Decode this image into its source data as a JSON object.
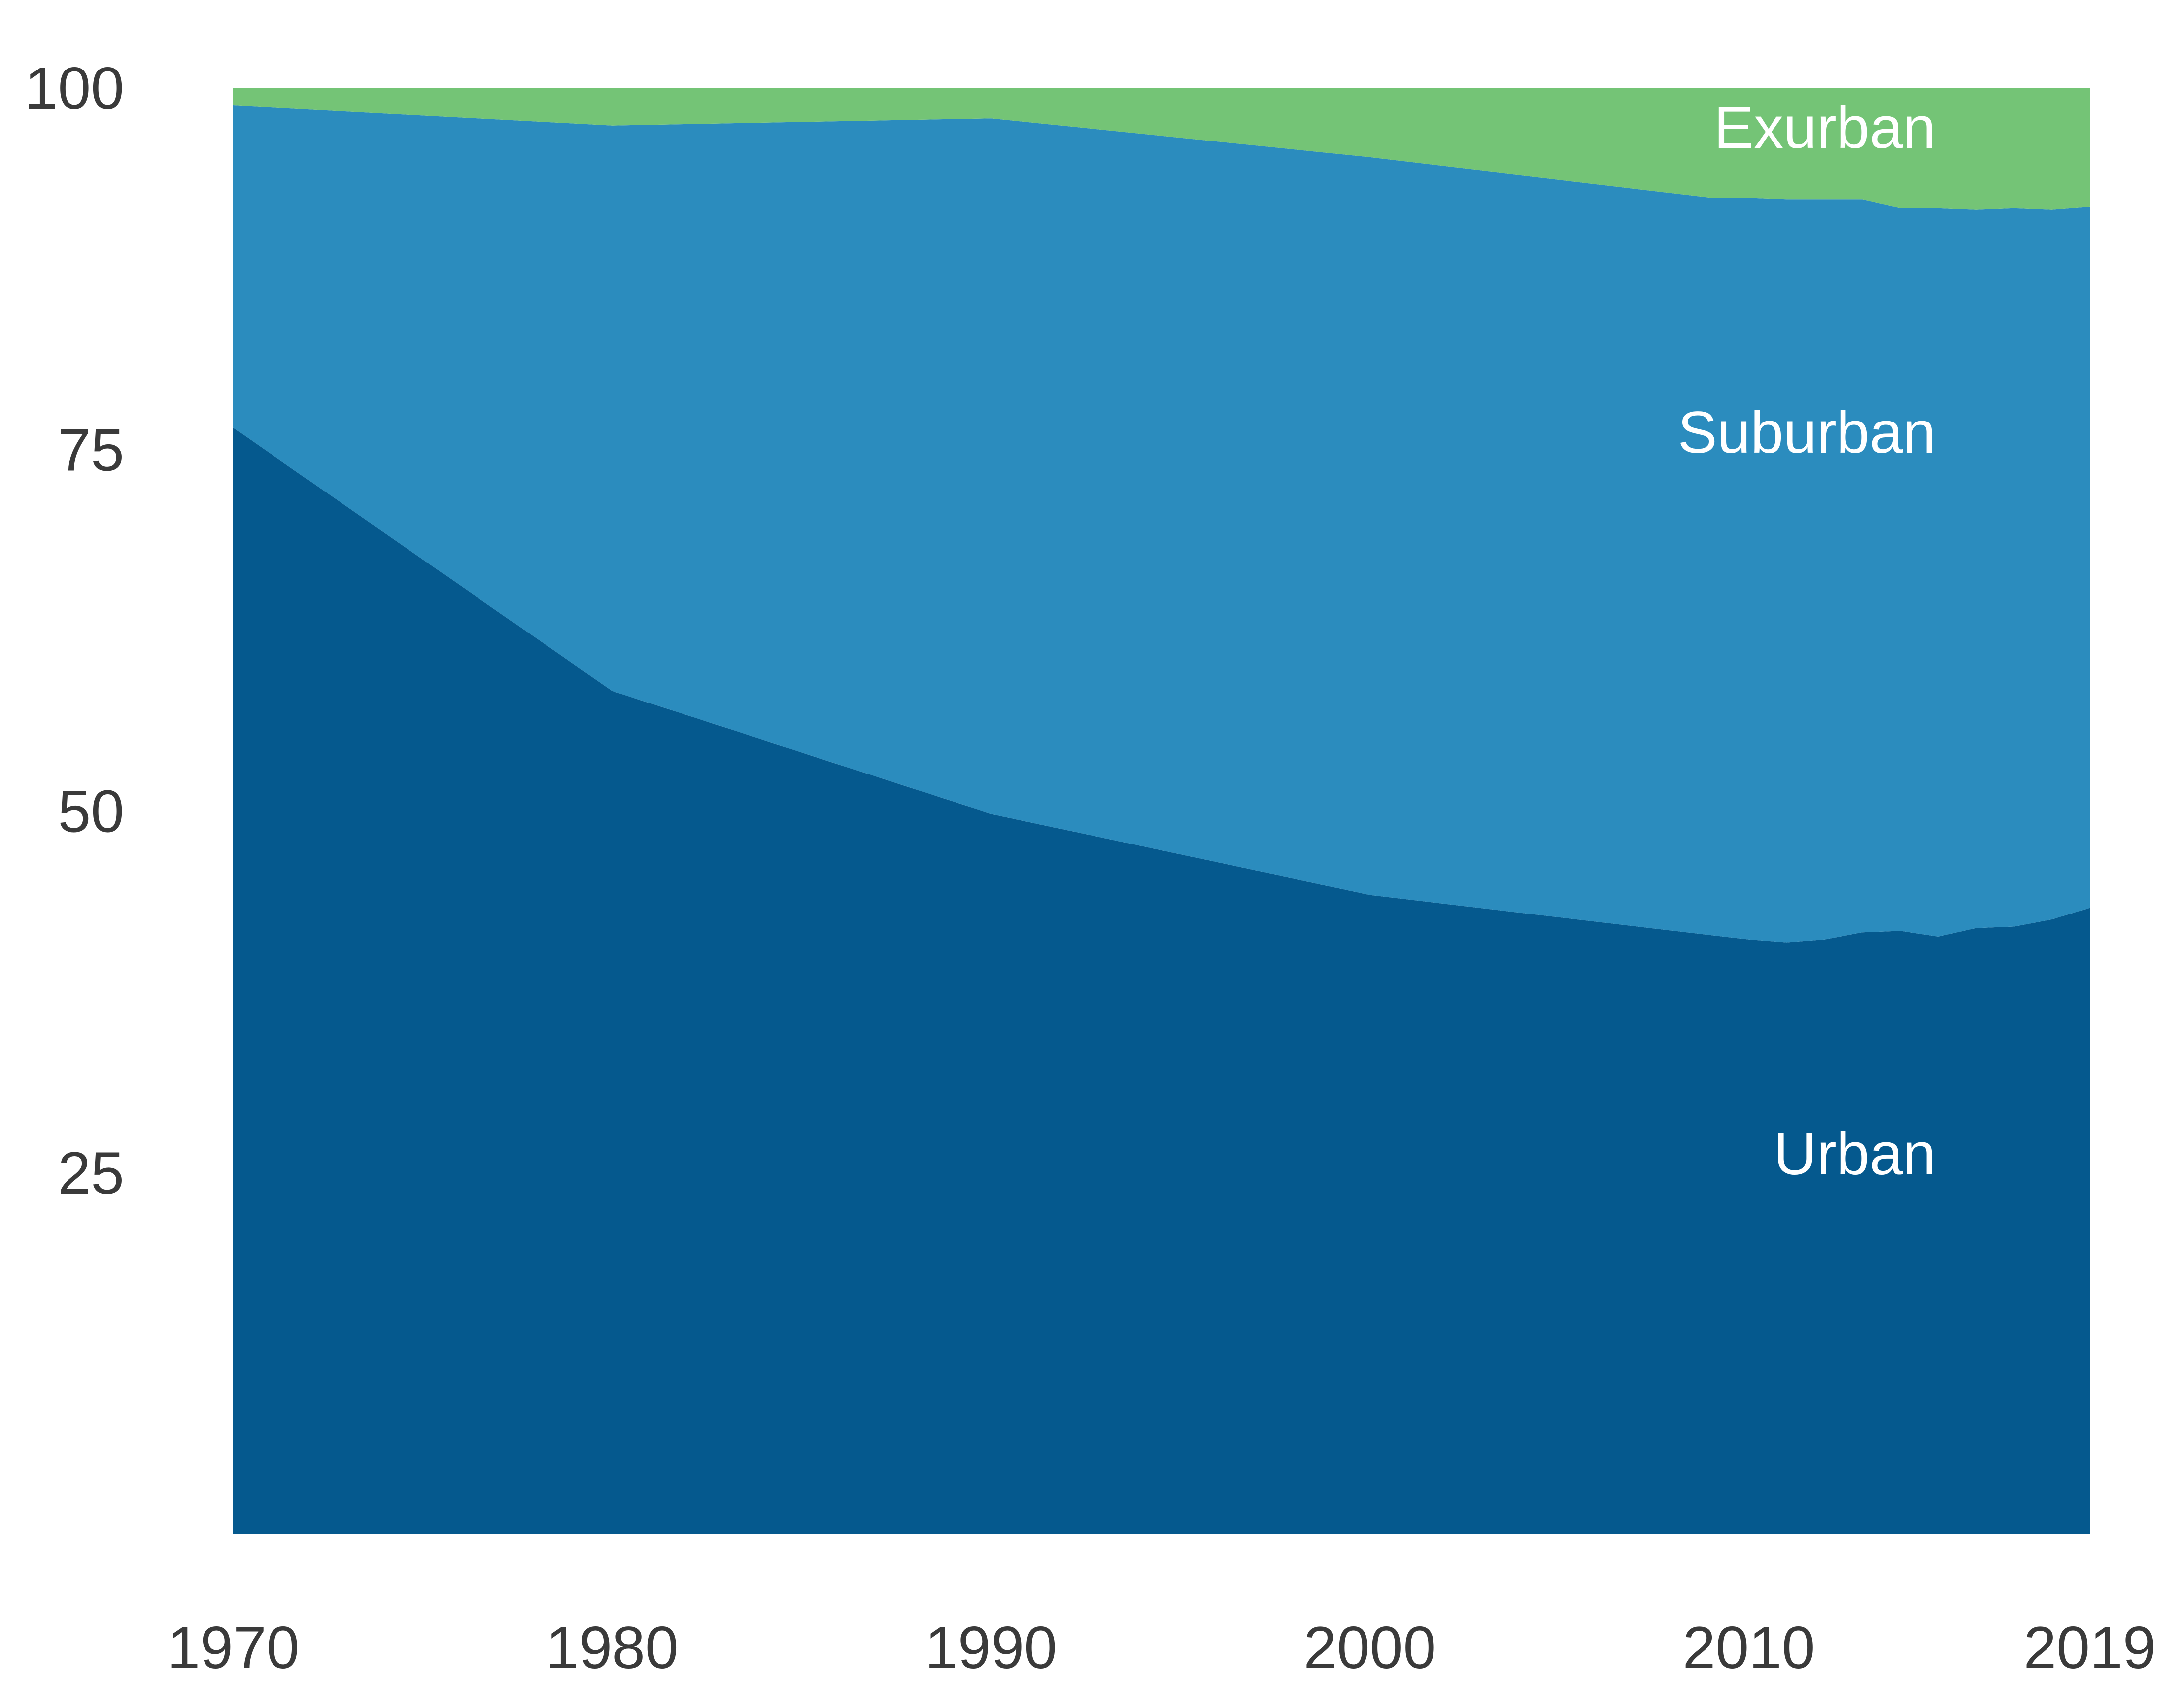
{
  "chart_data": {
    "type": "area",
    "stacked": true,
    "title": "",
    "xlabel": "",
    "ylabel": "",
    "xlim": [
      1970,
      2019
    ],
    "ylim": [
      0,
      100
    ],
    "grid": false,
    "legend": "none",
    "x_ticks": [
      "1970",
      "1980",
      "1990",
      "2000",
      "2010",
      "2019"
    ],
    "y_ticks": [
      "25",
      "50",
      "75",
      "100"
    ],
    "x": [
      1970,
      1980,
      1990,
      2000,
      2009,
      2010,
      2011,
      2012,
      2013,
      2014,
      2015,
      2016,
      2017,
      2018,
      2019
    ],
    "series": [
      {
        "name": "Urban",
        "color": "#05598e",
        "values": [
          76.5,
          58.3,
          49.8,
          44.2,
          41.4,
          41.1,
          40.9,
          41.1,
          41.6,
          41.7,
          41.3,
          41.9,
          42.0,
          42.5,
          43.3
        ]
      },
      {
        "name": "Suburban",
        "color": "#2b8cbe",
        "values": [
          22.3,
          39.1,
          48.1,
          51.0,
          51.0,
          51.3,
          51.4,
          51.2,
          50.7,
          50.0,
          50.4,
          49.7,
          49.7,
          49.1,
          48.5
        ]
      },
      {
        "name": "Exurban",
        "color": "#74c476",
        "values": [
          1.2,
          2.6,
          2.1,
          4.8,
          7.6,
          7.6,
          7.7,
          7.7,
          7.7,
          8.3,
          8.3,
          8.4,
          8.3,
          8.4,
          8.2
        ]
      }
    ]
  }
}
